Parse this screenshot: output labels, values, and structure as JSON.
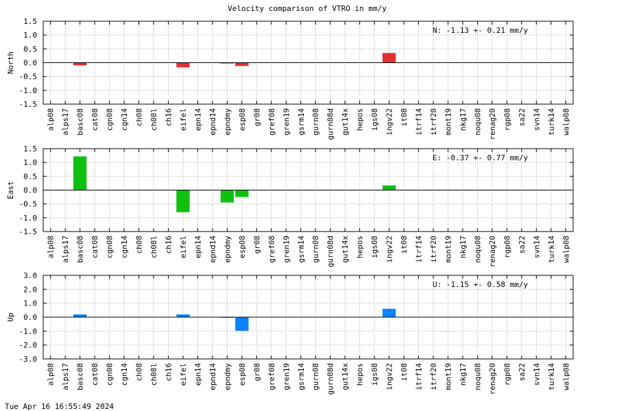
{
  "title": "Velocity comparison of VTRO in mm/y",
  "timestamp": "Tue Apr 16 16:55:49 2024",
  "chart_data": [
    {
      "type": "bar",
      "ylabel": "North",
      "ylim": [
        -1.5,
        1.5
      ],
      "yticks": [
        -1.5,
        -1.0,
        -0.5,
        0.0,
        0.5,
        1.0,
        1.5
      ],
      "tick_labels": [
        "-1.5",
        "-1.0",
        "-0.5",
        "0.0",
        "0.5",
        "1.0",
        "1.5"
      ],
      "stat": "N:  -1.13 +-  0.21 mm/y",
      "color": "#e53030",
      "grid": true,
      "categories": [
        "alp08",
        "alps17",
        "basc08",
        "cat08",
        "cgn08",
        "cgn14",
        "ch08",
        "ch08l",
        "ch16",
        "eifel",
        "epn14",
        "epnd14",
        "epndmy",
        "esp08",
        "gr08",
        "gref08",
        "gren19",
        "gsrm14",
        "gurn08",
        "gurn08d",
        "gut14x",
        "hepos",
        "igs08",
        "ingv22",
        "it08",
        "itrf14",
        "itrf20",
        "mont19",
        "nkg17",
        "noqu08",
        "renag20",
        "rgp08",
        "sa22",
        "svn14",
        "turk14",
        "walp08"
      ],
      "values": [
        0,
        0,
        -0.1,
        0,
        0,
        0,
        0,
        0,
        0,
        -0.17,
        0,
        0,
        -0.03,
        -0.12,
        0,
        0,
        0,
        0,
        0,
        0,
        0,
        0,
        0,
        0.35,
        0,
        0,
        0,
        0,
        0,
        0,
        0,
        0,
        0,
        0,
        0,
        0
      ]
    },
    {
      "type": "bar",
      "ylabel": "East",
      "ylim": [
        -1.5,
        1.5
      ],
      "yticks": [
        -1.5,
        -1.0,
        -0.5,
        0.0,
        0.5,
        1.0,
        1.5
      ],
      "tick_labels": [
        "-1.5",
        "-1.0",
        "-0.5",
        "0.0",
        "0.5",
        "1.0",
        "1.5"
      ],
      "stat": "E:  -0.37 +-  0.77 mm/y",
      "color": "#10c010",
      "grid": true,
      "categories": [
        "alp08",
        "alps17",
        "basc08",
        "cat08",
        "cgn08",
        "cgn14",
        "ch08",
        "ch08l",
        "ch16",
        "eifel",
        "epn14",
        "epnd14",
        "epndmy",
        "esp08",
        "gr08",
        "gref08",
        "gren19",
        "gsrm14",
        "gurn08",
        "gurn08d",
        "gut14x",
        "hepos",
        "igs08",
        "ingv22",
        "it08",
        "itrf14",
        "itrf20",
        "mont19",
        "nkg17",
        "noqu08",
        "renag20",
        "rgp08",
        "sa22",
        "svn14",
        "turk14",
        "walp08"
      ],
      "values": [
        0,
        0,
        1.22,
        0,
        0,
        0,
        0,
        0,
        0,
        -0.8,
        0,
        0,
        -0.45,
        -0.25,
        0,
        0,
        0,
        0,
        0,
        0,
        0,
        0,
        0,
        0.17,
        0,
        0,
        0,
        0,
        0,
        0,
        0,
        0,
        0,
        0,
        0,
        0
      ]
    },
    {
      "type": "bar",
      "ylabel": "Up",
      "ylim": [
        -3.0,
        3.0
      ],
      "yticks": [
        -3.0,
        -2.0,
        -1.0,
        0.0,
        1.0,
        2.0,
        3.0
      ],
      "tick_labels": [
        "-3.0",
        "-2.0",
        "-1.0",
        "0.0",
        "1.0",
        "2.0",
        "3.0"
      ],
      "stat": "U:  -1.15 +-  0.58 mm/y",
      "color": "#0a84ff",
      "grid": true,
      "categories": [
        "alp08",
        "alps17",
        "basc08",
        "cat08",
        "cgn08",
        "cgn14",
        "ch08",
        "ch08l",
        "ch16",
        "eifel",
        "epn14",
        "epnd14",
        "epndmy",
        "esp08",
        "gr08",
        "gref08",
        "gren19",
        "gsrm14",
        "gurn08",
        "gurn08d",
        "gut14x",
        "hepos",
        "igs08",
        "ingv22",
        "it08",
        "itrf14",
        "itrf20",
        "mont19",
        "nkg17",
        "noqu08",
        "renag20",
        "rgp08",
        "sa22",
        "svn14",
        "turk14",
        "walp08"
      ],
      "values": [
        0,
        0,
        0.2,
        0,
        0,
        0,
        0,
        0,
        0,
        0.2,
        0,
        0,
        -0.05,
        -0.98,
        0,
        0,
        0,
        0,
        0,
        0,
        0,
        0,
        0,
        0.6,
        0,
        0,
        0,
        0,
        0,
        0,
        0,
        0,
        0,
        0,
        0,
        0
      ]
    }
  ]
}
